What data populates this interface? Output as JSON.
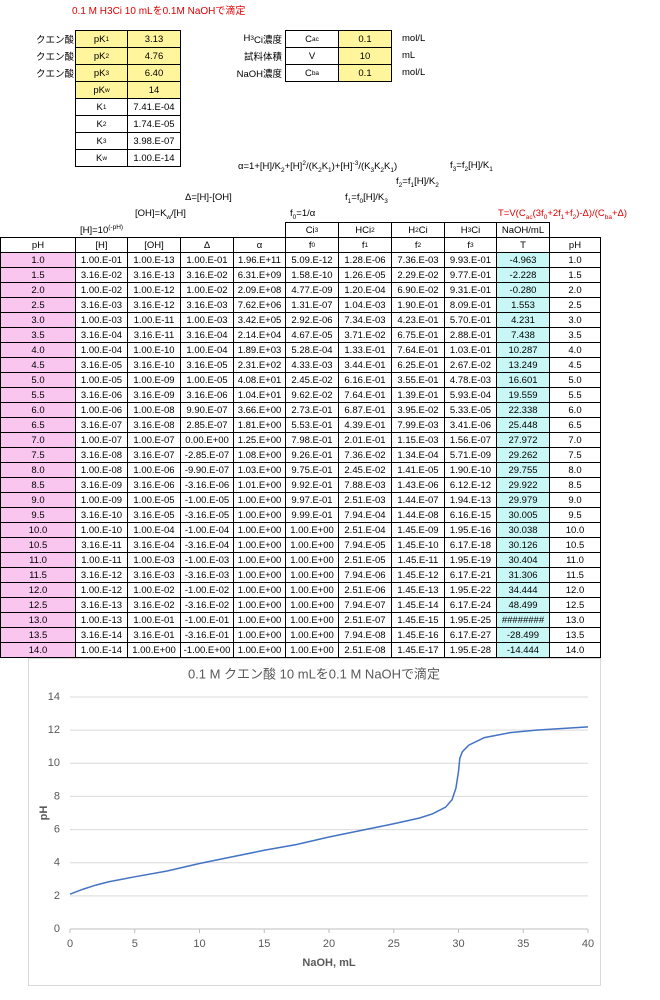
{
  "title": "0.1 M H3Ci 10 mLを0.1M NaOHで滴定",
  "params": [
    {
      "label": "クエン酸",
      "symbol": [
        "pK",
        {
          "sub": "1"
        }
      ],
      "value": "3.13"
    },
    {
      "label": "クエン酸",
      "symbol": [
        "pK",
        {
          "sub": "2"
        }
      ],
      "value": "4.76"
    },
    {
      "label": "クエン酸",
      "symbol": [
        "pK",
        {
          "sub": "3"
        }
      ],
      "value": "6.40"
    },
    {
      "symbol": [
        "pK",
        {
          "sub": "w"
        }
      ],
      "value": "14"
    },
    {
      "symbol": [
        "K",
        {
          "sub": "1"
        }
      ],
      "value": "7.41.E-04"
    },
    {
      "symbol": [
        "K",
        {
          "sub": "2"
        }
      ],
      "value": "1.74.E-05"
    },
    {
      "symbol": [
        "K",
        {
          "sub": "3"
        }
      ],
      "value": "3.98.E-07"
    },
    {
      "symbol": [
        "K",
        {
          "sub": "w"
        }
      ],
      "value": "1.00.E-14"
    }
  ],
  "conditions": [
    {
      "label": [
        "H",
        {
          "sub": "3"
        },
        "Ci濃度"
      ],
      "symbol": [
        "C",
        {
          "sub": "ac"
        }
      ],
      "value": "0.1",
      "unit": "mol/L"
    },
    {
      "label": [
        "試料体積"
      ],
      "symbol": [
        "V"
      ],
      "value": "10",
      "unit": "mL"
    },
    {
      "label": [
        "NaOH濃度"
      ],
      "symbol": [
        "C",
        {
          "sub": "ba"
        }
      ],
      "value": "0.1",
      "unit": "mol/L"
    }
  ],
  "formulas": {
    "alpha": [
      "α=1+[H]/K",
      {
        "sub": "2"
      },
      "+[H]",
      {
        "sup": "2"
      },
      "/(K",
      {
        "sub": "2"
      },
      "K",
      {
        "sub": "1"
      },
      ")+[H]",
      {
        "sup": "-3"
      },
      "/(K",
      {
        "sub": "3"
      },
      "K",
      {
        "sub": "2"
      },
      "K",
      {
        "sub": "1"
      },
      ")"
    ],
    "f3": [
      "f",
      {
        "sub": "3"
      },
      "=f",
      {
        "sub": "2"
      },
      "[H]/K",
      {
        "sub": "1"
      }
    ],
    "f2": [
      "f",
      {
        "sub": "2"
      },
      "=f",
      {
        "sub": "1"
      },
      "[H]/K",
      {
        "sub": "2"
      }
    ],
    "delta": [
      "Δ=[H]-[OH]"
    ],
    "f1": [
      "f",
      {
        "sub": "1"
      },
      "=f",
      {
        "sub": "0"
      },
      "[H]/K",
      {
        "sub": "3"
      }
    ],
    "oh": [
      "[OH]=K",
      {
        "sub": "w"
      },
      "/[H]"
    ],
    "f0": [
      "f",
      {
        "sub": "0"
      },
      "=1/α"
    ],
    "t": [
      "T=V(C",
      {
        "sub": "ac"
      },
      "(3f",
      {
        "sub": "0"
      },
      "+2f",
      {
        "sub": "1"
      },
      "+f",
      {
        "sub": "2"
      },
      ")-Δ)/(C",
      {
        "sub": "ba"
      },
      "+Δ)"
    ],
    "h": [
      "[H]=10",
      {
        "sup": "(-pH)"
      }
    ]
  },
  "table": {
    "species": [
      [
        "Ci",
        {
          "sup": "3"
        }
      ],
      [
        "HCi",
        {
          "sup": "2"
        }
      ],
      [
        "H",
        {
          "sub": "2"
        },
        "Ci"
      ],
      [
        "H",
        {
          "sub": "3"
        },
        "Ci"
      ],
      [
        "NaOH/mL"
      ]
    ],
    "header": [
      [
        "pH"
      ],
      [
        "[H]"
      ],
      [
        "[OH]"
      ],
      [
        "Δ"
      ],
      [
        "α"
      ],
      [
        "f",
        {
          "sub": "0"
        }
      ],
      [
        "f",
        {
          "sub": "1"
        }
      ],
      [
        "f",
        {
          "sub": "2"
        }
      ],
      [
        "f",
        {
          "sub": "3"
        }
      ],
      [
        "T"
      ],
      [
        "pH"
      ]
    ],
    "rows": [
      [
        "1.0",
        "1.00.E-01",
        "1.00.E-13",
        "1.00.E-01",
        "1.96.E+11",
        "5.09.E-12",
        "1.28.E-06",
        "7.36.E-03",
        "9.93.E-01",
        "-4.963",
        "1.0"
      ],
      [
        "1.5",
        "3.16.E-02",
        "3.16.E-13",
        "3.16.E-02",
        "6.31.E+09",
        "1.58.E-10",
        "1.26.E-05",
        "2.29.E-02",
        "9.77.E-01",
        "-2.228",
        "1.5"
      ],
      [
        "2.0",
        "1.00.E-02",
        "1.00.E-12",
        "1.00.E-02",
        "2.09.E+08",
        "4.77.E-09",
        "1.20.E-04",
        "6.90.E-02",
        "9.31.E-01",
        "-0.280",
        "2.0"
      ],
      [
        "2.5",
        "3.16.E-03",
        "3.16.E-12",
        "3.16.E-03",
        "7.62.E+06",
        "1.31.E-07",
        "1.04.E-03",
        "1.90.E-01",
        "8.09.E-01",
        "1.553",
        "2.5"
      ],
      [
        "3.0",
        "1.00.E-03",
        "1.00.E-11",
        "1.00.E-03",
        "3.42.E+05",
        "2.92.E-06",
        "7.34.E-03",
        "4.23.E-01",
        "5.70.E-01",
        "4.231",
        "3.0"
      ],
      [
        "3.5",
        "3.16.E-04",
        "3.16.E-11",
        "3.16.E-04",
        "2.14.E+04",
        "4.67.E-05",
        "3.71.E-02",
        "6.75.E-01",
        "2.88.E-01",
        "7.438",
        "3.5"
      ],
      [
        "4.0",
        "1.00.E-04",
        "1.00.E-10",
        "1.00.E-04",
        "1.89.E+03",
        "5.28.E-04",
        "1.33.E-01",
        "7.64.E-01",
        "1.03.E-01",
        "10.287",
        "4.0"
      ],
      [
        "4.5",
        "3.16.E-05",
        "3.16.E-10",
        "3.16.E-05",
        "2.31.E+02",
        "4.33.E-03",
        "3.44.E-01",
        "6.25.E-01",
        "2.67.E-02",
        "13.249",
        "4.5"
      ],
      [
        "5.0",
        "1.00.E-05",
        "1.00.E-09",
        "1.00.E-05",
        "4.08.E+01",
        "2.45.E-02",
        "6.16.E-01",
        "3.55.E-01",
        "4.78.E-03",
        "16.601",
        "5.0"
      ],
      [
        "5.5",
        "3.16.E-06",
        "3.16.E-09",
        "3.16.E-06",
        "1.04.E+01",
        "9.62.E-02",
        "7.64.E-01",
        "1.39.E-01",
        "5.93.E-04",
        "19.559",
        "5.5"
      ],
      [
        "6.0",
        "1.00.E-06",
        "1.00.E-08",
        "9.90.E-07",
        "3.66.E+00",
        "2.73.E-01",
        "6.87.E-01",
        "3.95.E-02",
        "5.33.E-05",
        "22.338",
        "6.0"
      ],
      [
        "6.5",
        "3.16.E-07",
        "3.16.E-08",
        "2.85.E-07",
        "1.81.E+00",
        "5.53.E-01",
        "4.39.E-01",
        "7.99.E-03",
        "3.41.E-06",
        "25.448",
        "6.5"
      ],
      [
        "7.0",
        "1.00.E-07",
        "1.00.E-07",
        "0.00.E+00",
        "1.25.E+00",
        "7.98.E-01",
        "2.01.E-01",
        "1.15.E-03",
        "1.56.E-07",
        "27.972",
        "7.0"
      ],
      [
        "7.5",
        "3.16.E-08",
        "3.16.E-07",
        "-2.85.E-07",
        "1.08.E+00",
        "9.26.E-01",
        "7.36.E-02",
        "1.34.E-04",
        "5.71.E-09",
        "29.262",
        "7.5"
      ],
      [
        "8.0",
        "1.00.E-08",
        "1.00.E-06",
        "-9.90.E-07",
        "1.03.E+00",
        "9.75.E-01",
        "2.45.E-02",
        "1.41.E-05",
        "1.90.E-10",
        "29.755",
        "8.0"
      ],
      [
        "8.5",
        "3.16.E-09",
        "3.16.E-06",
        "-3.16.E-06",
        "1.01.E+00",
        "9.92.E-01",
        "7.88.E-03",
        "1.43.E-06",
        "6.12.E-12",
        "29.922",
        "8.5"
      ],
      [
        "9.0",
        "1.00.E-09",
        "1.00.E-05",
        "-1.00.E-05",
        "1.00.E+00",
        "9.97.E-01",
        "2.51.E-03",
        "1.44.E-07",
        "1.94.E-13",
        "29.979",
        "9.0"
      ],
      [
        "9.5",
        "3.16.E-10",
        "3.16.E-05",
        "-3.16.E-05",
        "1.00.E+00",
        "9.99.E-01",
        "7.94.E-04",
        "1.44.E-08",
        "6.16.E-15",
        "30.005",
        "9.5"
      ],
      [
        "10.0",
        "1.00.E-10",
        "1.00.E-04",
        "-1.00.E-04",
        "1.00.E+00",
        "1.00.E+00",
        "2.51.E-04",
        "1.45.E-09",
        "1.95.E-16",
        "30.038",
        "10.0"
      ],
      [
        "10.5",
        "3.16.E-11",
        "3.16.E-04",
        "-3.16.E-04",
        "1.00.E+00",
        "1.00.E+00",
        "7.94.E-05",
        "1.45.E-10",
        "6.17.E-18",
        "30.126",
        "10.5"
      ],
      [
        "11.0",
        "1.00.E-11",
        "1.00.E-03",
        "-1.00.E-03",
        "1.00.E+00",
        "1.00.E+00",
        "2.51.E-05",
        "1.45.E-11",
        "1.95.E-19",
        "30.404",
        "11.0"
      ],
      [
        "11.5",
        "3.16.E-12",
        "3.16.E-03",
        "-3.16.E-03",
        "1.00.E+00",
        "1.00.E+00",
        "7.94.E-06",
        "1.45.E-12",
        "6.17.E-21",
        "31.306",
        "11.5"
      ],
      [
        "12.0",
        "1.00.E-12",
        "1.00.E-02",
        "-1.00.E-02",
        "1.00.E+00",
        "1.00.E+00",
        "2.51.E-06",
        "1.45.E-13",
        "1.95.E-22",
        "34.444",
        "12.0"
      ],
      [
        "12.5",
        "3.16.E-13",
        "3.16.E-02",
        "-3.16.E-02",
        "1.00.E+00",
        "1.00.E+00",
        "7.94.E-07",
        "1.45.E-14",
        "6.17.E-24",
        "48.499",
        "12.5"
      ],
      [
        "13.0",
        "1.00.E-13",
        "1.00.E-01",
        "-1.00.E-01",
        "1.00.E+00",
        "1.00.E+00",
        "2.51.E-07",
        "1.45.E-15",
        "1.95.E-25",
        "########",
        "13.0"
      ],
      [
        "13.5",
        "3.16.E-14",
        "3.16.E-01",
        "-3.16.E-01",
        "1.00.E+00",
        "1.00.E+00",
        "7.94.E-08",
        "1.45.E-16",
        "6.17.E-27",
        "-28.499",
        "13.5"
      ],
      [
        "14.0",
        "1.00.E-14",
        "1.00.E+00",
        "-1.00.E+00",
        "1.00.E+00",
        "1.00.E+00",
        "2.51.E-08",
        "1.45.E-17",
        "1.95.E-28",
        "-14.444",
        "14.0"
      ]
    ]
  },
  "chart_data": {
    "type": "line",
    "title": "0.1 M クエン酸 10 mLを0.1 M NaOHで滴定",
    "x_label": "NaOH, mL",
    "y_label": "pH",
    "color": "#4472c4",
    "x": [
      0,
      1,
      2,
      3,
      5,
      7.5,
      10,
      12.5,
      15,
      17.5,
      20,
      22.5,
      25,
      27,
      28,
      29,
      29.5,
      29.8,
      30,
      30.1,
      30.3,
      30.8,
      32,
      34,
      36,
      38,
      40
    ],
    "values": [
      2.1,
      2.4,
      2.65,
      2.85,
      3.15,
      3.5,
      3.95,
      4.35,
      4.75,
      5.1,
      5.55,
      5.95,
      6.35,
      6.7,
      6.95,
      7.35,
      7.8,
      8.5,
      9.5,
      10.3,
      10.7,
      11.1,
      11.55,
      11.85,
      12.0,
      12.1,
      12.2
    ],
    "xlim": [
      0,
      40
    ],
    "xticks": [
      0,
      5,
      10,
      15,
      20,
      25,
      30,
      35,
      40
    ],
    "ylim": [
      0,
      14
    ],
    "yticks": [
      0,
      2,
      4,
      6,
      8,
      10,
      12,
      14
    ],
    "grid": true
  }
}
